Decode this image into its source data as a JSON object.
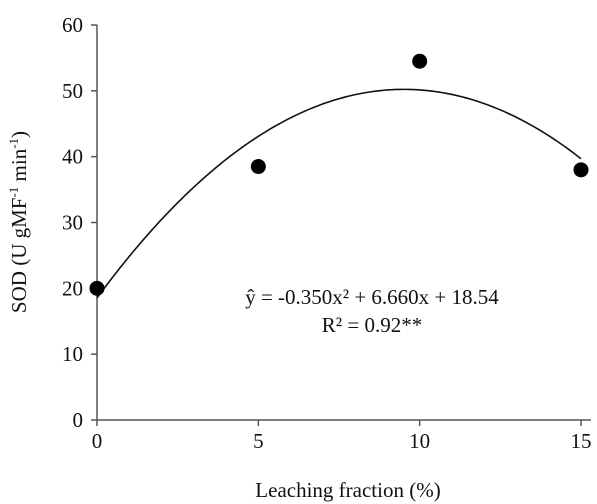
{
  "chart_data": {
    "type": "scatter",
    "title": "",
    "xlabel": "Leaching fraction (%)",
    "ylabel": "SOD (U gMF",
    "ylabel_sup1": "-1",
    "ylabel_mid": " min",
    "ylabel_sup2": "-1",
    "ylabel_end": ")",
    "xlim": [
      0,
      15
    ],
    "ylim": [
      0,
      60
    ],
    "xticks": [
      0,
      5,
      10,
      15
    ],
    "yticks": [
      0,
      10,
      20,
      30,
      40,
      50,
      60
    ],
    "xtick_labels": [
      "0",
      "5",
      "10",
      "15"
    ],
    "ytick_labels": [
      "0",
      "10",
      "20",
      "30",
      "40",
      "50",
      "60"
    ],
    "grid": false,
    "points": [
      {
        "x": 0,
        "y": 20
      },
      {
        "x": 5,
        "y": 38.5
      },
      {
        "x": 10,
        "y": 54.5
      },
      {
        "x": 15,
        "y": 38
      }
    ],
    "fit": {
      "type": "quadratic",
      "a": -0.35,
      "b": 6.66,
      "c": 18.54,
      "equation": "ŷ = -0.350x² + 6.660x + 18.54",
      "r2": "R² = 0.92**"
    }
  }
}
